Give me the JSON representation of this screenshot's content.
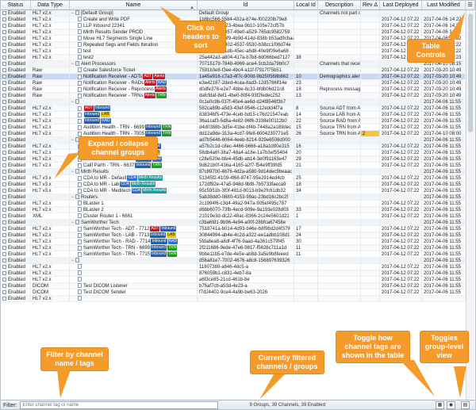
{
  "headers": [
    "Status",
    "Data Type",
    "Name",
    "Id",
    "Local Id",
    "Description",
    "Rev Δ",
    "Last Deployed",
    "Last Modified"
  ],
  "rows": [
    {
      "g": 1,
      "st": "Enabled",
      "dt": "HL7 v2.x",
      "nm": "[Default Group]",
      "id": "Default Group",
      "lid": "",
      "ds": "Channels not part of",
      "rv": "",
      "ld": "",
      "lm": ""
    },
    {
      "st": "Enabled",
      "dt": "HL7 v2.x",
      "nm": "Create and Write PDF",
      "id": "1b8bc566-5584-432a-874e-f00220lb79e8",
      "lid": "",
      "ds": "",
      "rv": "",
      "ld": "2017-04-12 07:22",
      "lm": "2017-04-06 14:22"
    },
    {
      "st": "Enabled",
      "dt": "HL7 v2.x",
      "nm": "LLP Inbound 22341",
      "id": "a4c8e3e0-9f23-4bea-9b10-105e72cf57b",
      "lid": "",
      "ds": "",
      "rv": "",
      "ld": "2017-04-12 07:22",
      "lm": "2017-04-06 14:22"
    },
    {
      "st": "Enabled",
      "dt": "HL7 v2.x",
      "nm": "Mirth Results Sender PROD",
      "id": "aa0453d4-3057-49e0-a529-765dc9582759",
      "lid": "",
      "ds": "",
      "rv": "",
      "ld": "2017-04-12 07:22",
      "lm": "2017-04-06 14:22"
    },
    {
      "st": "Enabled",
      "dt": "HL7 v2.x",
      "nm": "Move HL7 Segments Single Line",
      "id": "4c8ea8b0-96f9-4b9d-414d-838b b53ad9cbaadd",
      "lid": "",
      "ds": "",
      "rv": "",
      "ld": "2017-04-12 07:22",
      "lm": "2017-04-06 14:22"
    },
    {
      "st": "Enabled",
      "dt": "HL7 v2.x",
      "nm": "Repeated Segs and Fields Iteration",
      "id": "2b57ea69-4302-4537-9530-b38cc1f06d74e",
      "lid": "",
      "ds": "",
      "rv": "",
      "ld": "2017-04-12 07:22",
      "lm": "2017-04-06 14:22"
    },
    {
      "st": "Enabled",
      "dt": "HL7 v2.x",
      "nm": "test",
      "id": "14d0eb63-01db-45ec-a6d8-40e9f09e6a68",
      "lid": "",
      "ds": "",
      "rv": "",
      "ld": "2017-04-12 07:22",
      "lm": "2017-04-06 14:22"
    },
    {
      "st": "Enabled",
      "dt": "HL7 v2.x",
      "nm": "test2",
      "id": "25a442a3-a804-417a-b7b8-6d066bed7127",
      "lid": "38",
      "ds": "",
      "rv": "",
      "ld": "2017-04-12 07:22",
      "lm": "2017-04-06 13:23"
    },
    {
      "g": 1,
      "st": "Enabled",
      "dt": "",
      "nm": "Alert Processors",
      "id": "70715179-7848-4969-ace4-3cb2da79b0c7",
      "lid": "",
      "ds": "Channels that receive",
      "rv": "",
      "ld": "",
      "lm": "2017-04-10 08:15"
    },
    {
      "st": "Enabled",
      "dt": "Raw",
      "nm": "Create Salesforce Ticket",
      "id": "7591b3e8-f3ee-4bc4-a11f-f7917f75b51",
      "lid": "",
      "ds": "",
      "rv": "",
      "ld": "2017-04-12 07:22",
      "lm": "2017-03-20 10:49"
    },
    {
      "sel": 1,
      "st": "Enabled",
      "dt": "Raw",
      "nm": "Notification Receiver - ADTs",
      "tags": [
        [
          "ADT",
          "#d1141f"
        ],
        [
          "Alerts",
          "#d1141f"
        ]
      ],
      "id": "1a45e916-c7a3-4f7c-900d-9b250568b862",
      "lid": "10",
      "ds": "Demographics alert",
      "rv": "",
      "ld": "2017-04-12 07:22",
      "lm": "2017-03-20 10:49"
    },
    {
      "st": "Enabled",
      "dt": "Raw",
      "nm": "Notification Receiver - RADs",
      "tags": [
        [
          "Alerts",
          "#d1141f"
        ],
        [
          "RAD",
          "#2d6fd6"
        ]
      ],
      "id": "e3a42187-2ded-4caa-8ad3-12d5766lf14e",
      "lid": "23",
      "ds": "",
      "rv": "",
      "ld": "2017-04-12 07:22",
      "lm": "2017-03-20 10:49"
    },
    {
      "st": "Enabled",
      "dt": "Raw",
      "nm": "Notification Receiver - Reprocess",
      "tags": [
        [
          "Alerts",
          "#d1141f"
        ]
      ],
      "id": "d0dfe376-e2e7-4bbe-8c33-bfdb06d21c8",
      "lid": "18",
      "ds": "Reprocess messages",
      "rv": "",
      "ld": "2017-04-12 07:22",
      "lm": "2017-03-20 10:49"
    },
    {
      "st": "Enabled",
      "dt": "Raw",
      "nm": "Notification Receiver - TRNs",
      "tags": [
        [
          "Alerts",
          "#d1141f"
        ],
        [
          "TRN",
          "#1e9c1e"
        ]
      ],
      "id": "dafcfdaf-8ef1-4be0-80f4-93f2fedec252",
      "lid": "13",
      "ds": "",
      "rv": "",
      "ld": "2017-04-12 07:22",
      "lm": "2017-03-20 10:49"
    },
    {
      "g": 1,
      "st": "Enabled",
      "dt": "",
      "nm": "",
      "id": "0c1e0c9b-037f-40e4-ae6d-d24f8546f3b7",
      "lid": "",
      "ds": "",
      "rv": "",
      "ld": "",
      "lm": "2017-04-06 11:55"
    },
    {
      "st": "Enabled",
      "dt": "HL7 v2.x",
      "nm": "",
      "tags": [
        [
          "ADT",
          "#d1141f"
        ],
        [
          "Inbound",
          "#1f5fb4"
        ]
      ],
      "id": "582ca89b-a5d3-43ef-9546-c12edcl4f7a",
      "lid": "8",
      "ds": "Source ADT from Au",
      "rv": "",
      "ld": "2017-04-12 07:22",
      "lm": "2017-04-06 11:55"
    },
    {
      "st": "Enabled",
      "dt": "HL7 v2.x",
      "nm": "",
      "tags": [
        [
          "Inbound",
          "#1f5fb4"
        ],
        [
          "LAB",
          "#e8c800"
        ]
      ],
      "id": "83834bf5-473e-4ceb-bd15-c76d21547eab",
      "lid": "14",
      "ds": "Source LAB from Au",
      "rv": "",
      "ld": "2017-04-12 07:22",
      "lm": "2017-04-06 11:55"
    },
    {
      "st": "Enabled",
      "dt": "HL7 v2.x",
      "nm": "",
      "tags": [
        [
          "Inbound",
          "#1f5fb4"
        ],
        [
          "RAD",
          "#2d6fd6"
        ]
      ],
      "id": "36a1caf3-5d8a-4e82-96f6-3338e00112b0",
      "lid": "22",
      "ds": "Source RAD from Au",
      "rv": "",
      "ld": "2017-04-12 07:22",
      "lm": "2017-04-06 11:55"
    },
    {
      "st": "Enabled",
      "dt": "HL7 v2.x",
      "nm": "Audition Health - TRN - 6699",
      "tags": [
        [
          "Inbound",
          "#1f5fb4"
        ],
        [
          "TRN",
          "#1e9c1e"
        ]
      ],
      "id": "d4d0388b-3d5e-41be-bf4b-7448a2a189dec",
      "lid": "15",
      "ds": "Source TRN from Au",
      "rv": "",
      "ld": "2017-04-12 07:22",
      "lm": "2017-04-06 11:55"
    },
    {
      "st": "Enabled",
      "dt": "HL7 v2.x",
      "nm": "Audition Health - TRN - 7005",
      "tags": [
        [
          "Inbound",
          "#1f5fb4"
        ],
        [
          "TRN",
          "#1e9c1e"
        ]
      ],
      "id": "dd12a9de-313a-4cd7-9fe8-6004230771e5",
      "lid": "26",
      "ds": "Source TRN from Au",
      "rv": "2",
      "ld": "2017-04-12 07:22",
      "lm": "2017-04-10 08:00"
    },
    {
      "g": 1,
      "st": "Enabled",
      "dt": "",
      "nm": "Calif Parth",
      "id": "ad7b5446-6064-4eeb-8214-929e6506d000",
      "lid": "",
      "ds": "",
      "rv": "",
      "ld": "",
      "lm": "2017-04-06 11:55"
    },
    {
      "st": "Enabled",
      "dt": "HL7 v2.x",
      "nm": "Calif Parth - ADT - 6634",
      "tags": [
        [
          "ADT",
          "#d1141f"
        ],
        [
          "Inbound",
          "#1f5fb4"
        ]
      ],
      "id": "a57b2c1d-c8ec-4466-b666-a18a1d90e315",
      "lid": "16",
      "ds": "",
      "rv": "",
      "ld": "2017-04-12 07:22",
      "lm": "2017-04-06 11:55"
    },
    {
      "st": "Enabled",
      "dt": "HL7 v2.x",
      "nm": "Calif Parth - LAB - 6635",
      "tags": [
        [
          "Inbound",
          "#1f5fb4"
        ],
        [
          "LAB",
          "#e8c800"
        ]
      ],
      "id": "58db4a6f-38a7-48a4-a18e-1a7b3ef55404",
      "lid": "20",
      "ds": "",
      "rv": "",
      "ld": "2017-04-12 07:22",
      "lm": "2017-04-06 11:55"
    },
    {
      "st": "Enabled",
      "dt": "HL7 v2.x",
      "nm": "Calif Parth - RAD - 6636",
      "tags": [
        [
          "Inbound",
          "#1f5fb4"
        ],
        [
          "RAD",
          "#2d6fd6"
        ]
      ],
      "id": "c28e520e-bfe4-45db-ab14-3e0f91163e47",
      "lid": "29",
      "ds": "",
      "rv": "",
      "ld": "2017-04-12 07:22",
      "lm": "2017-04-06 11:55"
    },
    {
      "st": "Enabled",
      "dt": "HL7 v2.x",
      "nm": "Calif Parth - TRN - 6637",
      "tags": [
        [
          "Inbound",
          "#1f5fb4"
        ],
        [
          "TRN",
          "#1e9c1e"
        ]
      ],
      "id": "9d621b0f-436a-4165-a2f7-f54e9ff39fd5",
      "lid": "21",
      "ds": "",
      "rv": "",
      "ld": "2017-04-12 07:22",
      "lm": "2017-04-06 11:55"
    },
    {
      "g": 1,
      "st": "Enabled",
      "dt": "",
      "nm": "Mirth Results",
      "id": "87c89700-4b76-4d2a-a580-9d14dec9beaac",
      "lid": "",
      "ds": "",
      "rv": "",
      "ld": "",
      "lm": "2017-04-06 11:55"
    },
    {
      "st": "Enabled",
      "dt": "HL7 v3.x",
      "nm": "CDA to MR - Default",
      "tags": [
        [
          "CDA",
          "#2d6fd6"
        ],
        [
          "Mirth Results",
          "#17a0a8"
        ]
      ],
      "id": "51345f2-4109-4f68-8747-95e2914ed4cb",
      "lid": "25",
      "ds": "",
      "rv": "",
      "ld": "2017-04-12 07:22",
      "lm": "2017-04-06 11:55"
    },
    {
      "st": "Enabled",
      "dt": "HL7 v3.x",
      "nm": "CDA to MR - Lab",
      "tags": [
        [
          "CDA",
          "#2d6fd6"
        ],
        [
          "Mirth Results",
          "#17a0a8"
        ]
      ],
      "id": "172df92e-47a5-948d-9bf8-7b5733faeca9",
      "lid": "18",
      "ds": "",
      "rv": "",
      "ld": "2017-04-12 07:22",
      "lm": "2017-04-06 11:55"
    },
    {
      "st": "Enabled",
      "dt": "HL7 v3.x",
      "nm": "CDA to MR - Meditech",
      "tags": [
        [
          "CDA",
          "#2d6fd6"
        ],
        [
          "Mirth Results",
          "#17a0a8"
        ]
      ],
      "id": "95c5951b-3f0f-481d-8013-b9e2fc61db32",
      "lid": "34",
      "ds": "",
      "rv": "",
      "ld": "2017-04-12 07:22",
      "lm": "2017-04-06 11:55"
    },
    {
      "g": 1,
      "st": "Enabled",
      "dt": "",
      "nm": "Routers",
      "id": "5ab38dd0-0880-4153-99ac-23bd16c2bc2f",
      "lid": "",
      "ds": "",
      "rv": "",
      "ld": "",
      "lm": "2017-04-06 11:55"
    },
    {
      "st": "Enabled",
      "dt": "HL7 v2.x",
      "nm": "BLaster 1",
      "id": "2c1994f6-c3d4-49a2-947a-905ef495c787",
      "lid": "",
      "ds": "",
      "rv": "",
      "ld": "2017-04-12 07:22",
      "lm": "2017-04-06 11:55"
    },
    {
      "st": "Enabled",
      "dt": "HL7 v2.x",
      "nm": "BLaster 2",
      "id": "d6bb6070-73fb-4ecd-909e-9a193e028d03",
      "lid": "33",
      "ds": "",
      "rv": "",
      "ld": "2017-04-12 07:22",
      "lm": "2017-04-06 11:55"
    },
    {
      "st": "Enabled",
      "dt": "XML",
      "nm": "Cluster Router 1 - 6661",
      "id": "21019e3d-dc22-48ac-8366-2c24e5601d21",
      "lid": "1",
      "ds": "",
      "rv": "",
      "ld": "2017-04-12 07:22",
      "lm": "2017-04-06 11:55"
    },
    {
      "g": 1,
      "st": "Enabled",
      "dt": "",
      "nm": "SamWorther Tech",
      "id": "c3ba6fd1-9b96-4e94-a00f-28bfca67458e",
      "lid": "",
      "ds": "",
      "rv": "",
      "ld": "",
      "lm": "2017-04-06 11:55"
    },
    {
      "st": "Enabled",
      "dt": "HL7 v2.x",
      "nm": "SamWorther Tech - ADT - 7712",
      "tags": [
        [
          "ADT",
          "#d1141f"
        ],
        [
          "Inbound",
          "#1f5fb4"
        ]
      ],
      "id": "7518741a-b014-4d93-b46e-b8f98d2d4f379",
      "lid": "17",
      "ds": "",
      "rv": "",
      "ld": "2017-04-12 07:22",
      "lm": "2017-04-06 11:55"
    },
    {
      "st": "Enabled",
      "dt": "HL7 v2.x",
      "nm": "SamWorther Tech - LAB - 7713",
      "tags": [
        [
          "Inbound",
          "#1f5fb4"
        ],
        [
          "LAB",
          "#e8c800"
        ]
      ],
      "id": "30844994-ab4e-4c2d-a322-ee1adbb108d1",
      "lid": "24",
      "ds": "",
      "rv": "",
      "ld": "2017-04-12 07:22",
      "lm": "2017-04-06 11:55"
    },
    {
      "st": "Enabled",
      "dt": "HL7 v2.x",
      "nm": "SamWorther Tech - RAD - 7714",
      "tags": [
        [
          "Inbound",
          "#1f5fb4"
        ],
        [
          "RAD",
          "#2d6fd6"
        ]
      ],
      "id": "5fda8ea8-a8df-4f76-9aad-4a361c579f45",
      "lid": "30",
      "ds": "",
      "rv": "",
      "ld": "2017-04-12 07:22",
      "lm": "2017-04-06 11:55"
    },
    {
      "st": "Enabled",
      "dt": "HL7 v2.x",
      "nm": "SamWorther Tech - TRN - 6699",
      "tags": [
        [
          "Inbound",
          "#1f5fb4"
        ],
        [
          "TRN",
          "#1e9c1e"
        ]
      ],
      "id": "2f211686-9ede-47e6-9817-f5626c711a1d",
      "lid": "11",
      "ds": "",
      "rv": "",
      "ld": "2017-04-12 07:22",
      "lm": "2017-04-06 11:55"
    },
    {
      "st": "Enabled",
      "dt": "HL7 v2.x",
      "nm": "SamWorther Tech - TRN - 7715",
      "tags": [
        [
          "Inbound",
          "#1f5fb4"
        ],
        [
          "TRN",
          "#1e9c1e"
        ]
      ],
      "id": "9bbe11b5-e7de-4e5e-ab8d-3a5e9b8feeed",
      "lid": "11",
      "ds": "",
      "rv": "",
      "ld": "2017-04-12 07:22",
      "lm": "2017-04-06 11:55"
    },
    {
      "g": 1,
      "st": "Enabled",
      "dt": "",
      "nm": "",
      "id": "d56a81e7-7002-4676-a8c8-156897639326",
      "lid": "",
      "ds": "",
      "rv": "",
      "ld": "",
      "lm": "2017-04-06 11:55"
    },
    {
      "st": "Enabled",
      "dt": "HL7 v2.x",
      "nm": "",
      "id": "11807389-a846-4dc5-a",
      "lid": "",
      "ds": "",
      "rv": "",
      "ld": "2017-04-12 07:22",
      "lm": "2017-04-06 11:55"
    },
    {
      "st": "Enabled",
      "dt": "HL7 v2.x",
      "nm": "",
      "id": "876059b1-c831-4eb7-8a",
      "lid": "",
      "ds": "",
      "rv": "",
      "ld": "2017-04-12 07:22",
      "lm": "2017-04-06 11:55"
    },
    {
      "st": "Enabled",
      "dt": "HL7 v2.x",
      "nm": "",
      "id": "a6f3ce85-21cd-461b-8e",
      "lid": "",
      "ds": "",
      "rv": "",
      "ld": "2017-04-12 07:22",
      "lm": "2017-04-06 11:55"
    },
    {
      "st": "Enabled",
      "dt": "DICOM",
      "nm": "Test DICOM Listener",
      "id": "b75af7cb-a53d-4e23-a",
      "lid": "",
      "ds": "",
      "rv": "",
      "ld": "2017-04-12 07:22",
      "lm": "2017-04-06 11:55"
    },
    {
      "st": "Enabled",
      "dt": "DICOM",
      "nm": "Test DICOM Sender",
      "id": "f7d24402-9ce4-4a9b-be63-2026",
      "lid": "",
      "ds": "",
      "rv": "",
      "ld": "2017-04-12 07:22",
      "lm": "2017-04-06 11:55"
    },
    {
      "st": "Enabled",
      "dt": "HL7 v2.x",
      "nm": "",
      "id": "",
      "lid": "",
      "ds": "",
      "rv": "",
      "ld": "",
      "lm": ""
    }
  ],
  "footer": {
    "label": "Filter:",
    "placeholder": "Enter channel tag or name",
    "status": "9 Groups, 39 Channels, 39 Enabled"
  },
  "callouts": {
    "sort": "Click on headers to sort",
    "controls": "Table Controls",
    "expand": "Expand / collapse channel groups",
    "filter": "Filter by channel name / tags",
    "filtered": "Currently filtered channels / groups",
    "toggle_tags": "Toggle how channel tags are shown in the table",
    "toggle_group": "Toggles group-level view"
  }
}
